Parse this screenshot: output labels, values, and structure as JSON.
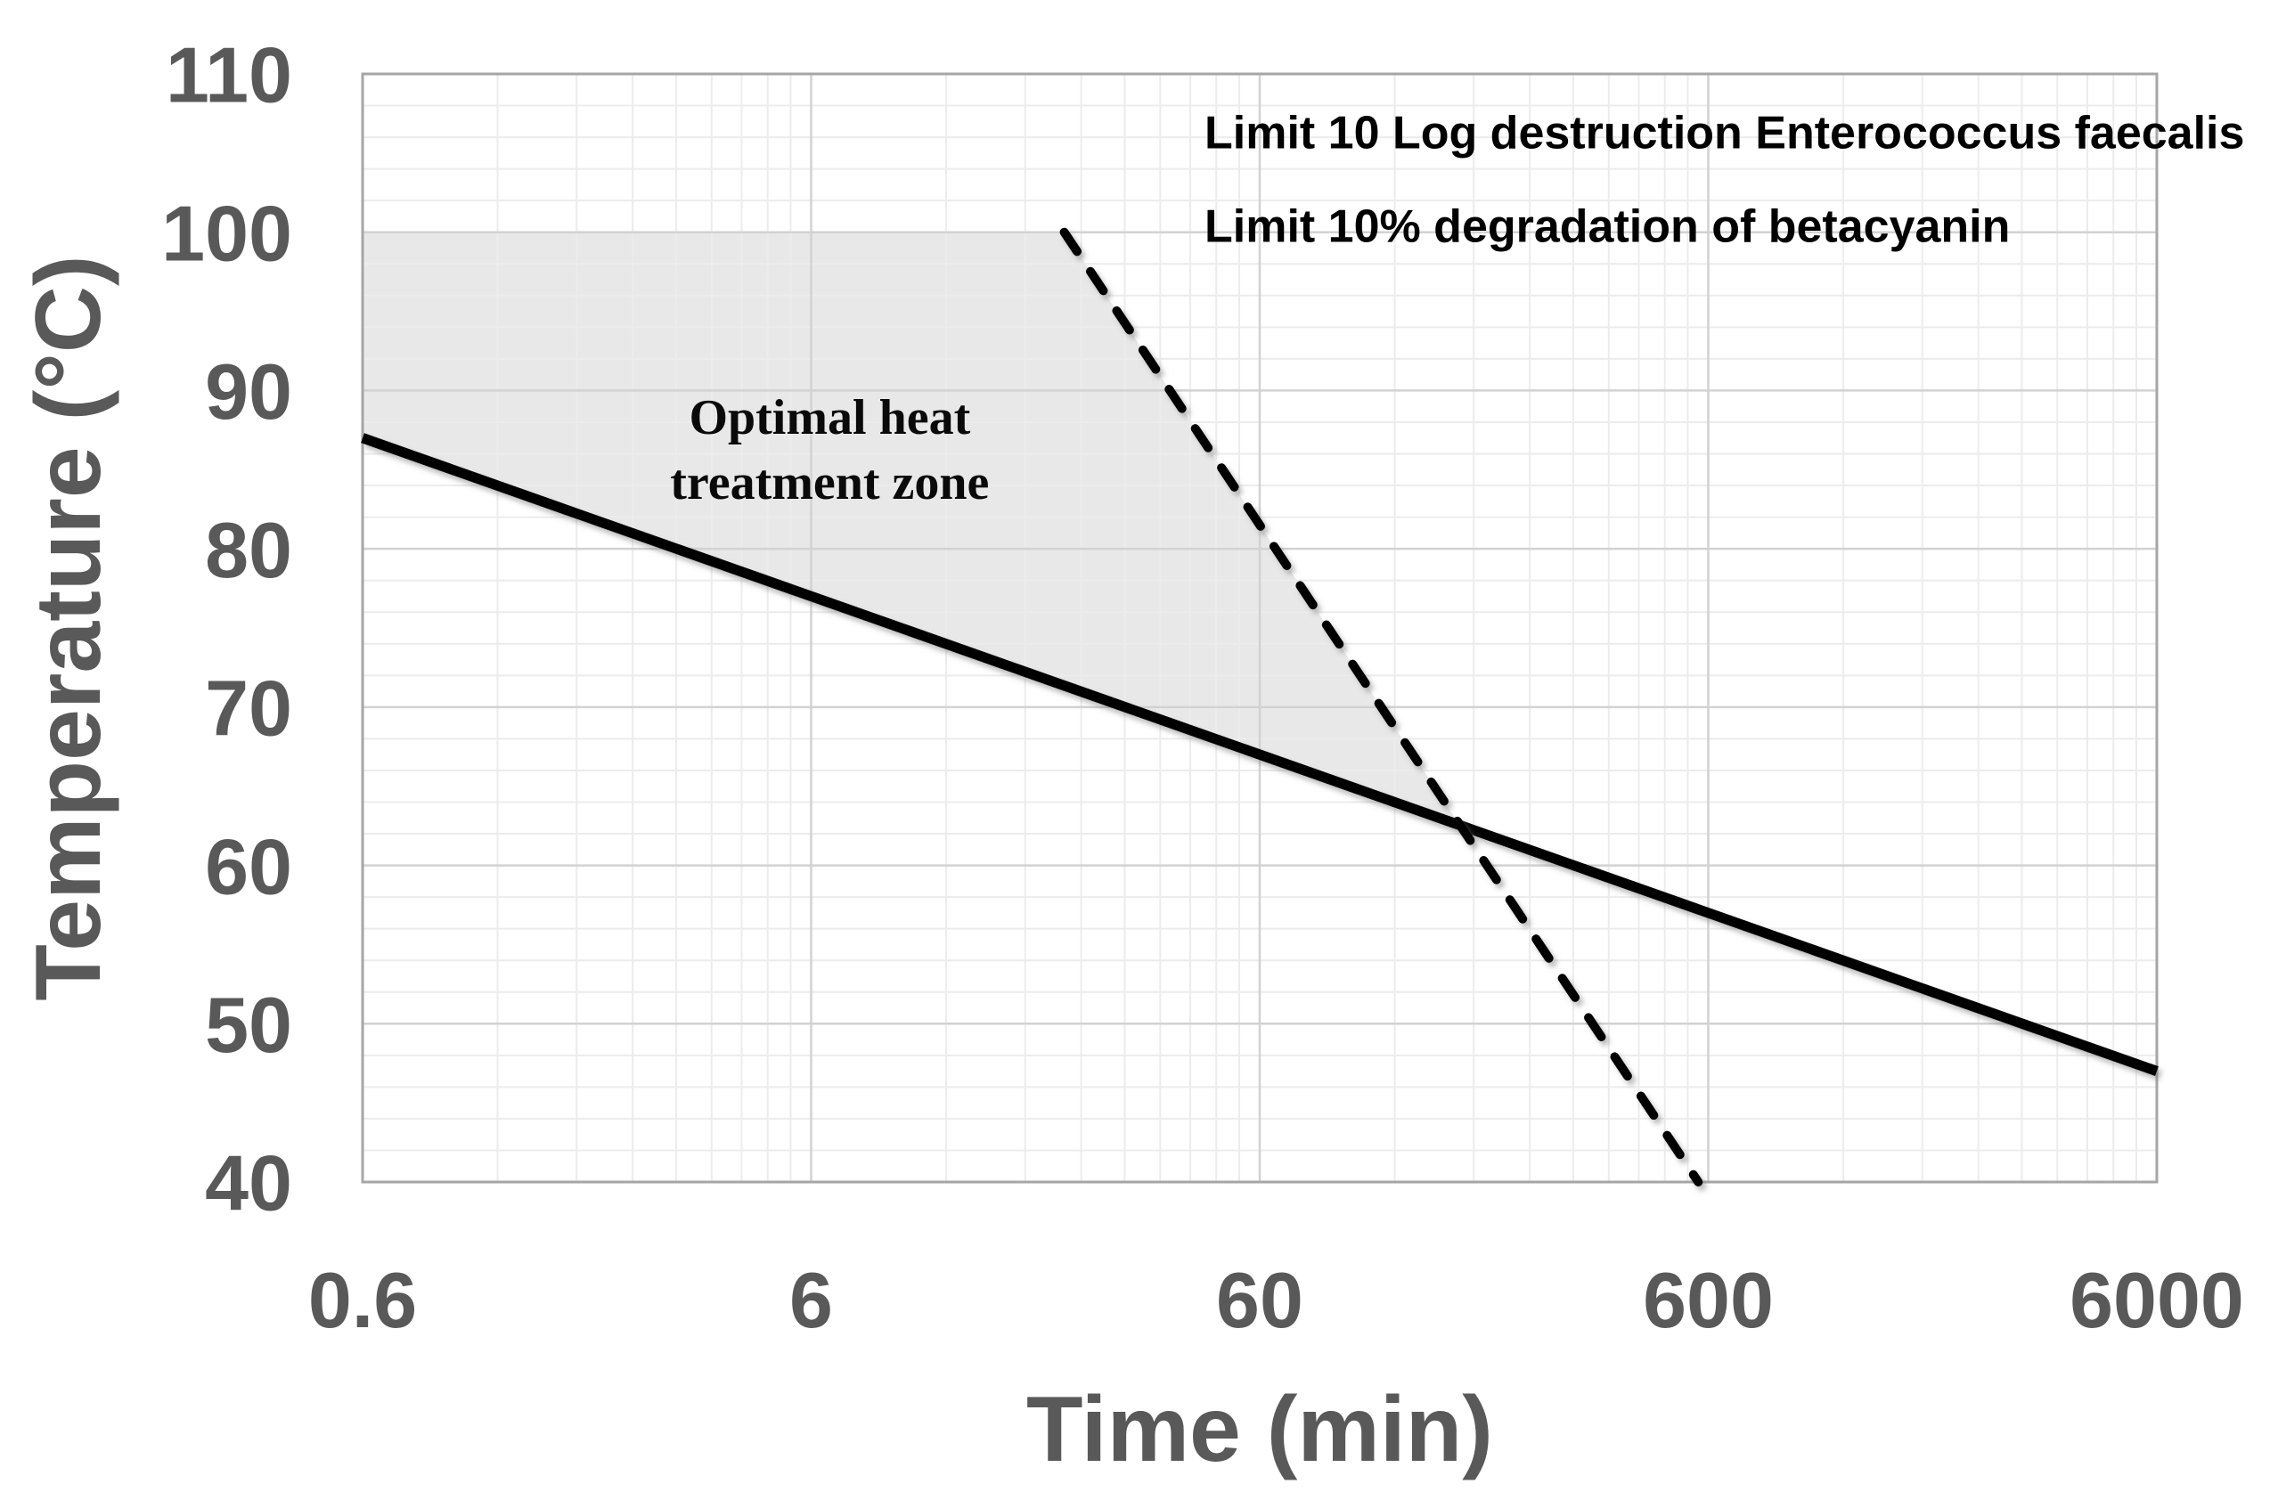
{
  "chart_data": {
    "type": "line",
    "title": "",
    "x_axis": {
      "label": "Time (min)",
      "scale": "log",
      "min": 0.6,
      "max": 6000,
      "tick_values": [
        0.6,
        6,
        60,
        600,
        6000
      ],
      "tick_labels": [
        "0.6",
        "6",
        "60",
        "600",
        "6000"
      ],
      "minor_grid_rule": "multiples 2-9 of each decade start (0.6, 6, 60, 600)",
      "grid": true
    },
    "y_axis": {
      "label": "Temperature (°C)",
      "min": 40,
      "max": 110,
      "major_step": 10,
      "minor_step": 2,
      "tick_values": [
        110,
        100,
        90,
        80,
        70,
        60,
        50,
        40
      ],
      "tick_labels": [
        "110",
        "100",
        "90",
        "80",
        "70",
        "60",
        "50",
        "40"
      ],
      "grid": true
    },
    "series": [
      {
        "name": "Limit 10 Log destruction Enterococcus faecalis",
        "line_style": "solid",
        "color": "#000000",
        "points": [
          [
            0.6,
            87
          ],
          [
            6000,
            47
          ]
        ]
      },
      {
        "name": "Limit 10% degradation of betacyanin",
        "line_style": "dashed",
        "color": "#000000",
        "points": [
          [
            22,
            100
          ],
          [
            570,
            40
          ]
        ]
      }
    ],
    "shaded_zone": {
      "label_lines": [
        "Optimal heat",
        "treatment zone"
      ],
      "fill": "#e8e8e8",
      "vertices": [
        [
          0.6,
          87
        ],
        [
          0.6,
          100
        ],
        [
          22,
          100
        ],
        [
          168,
          62.5
        ]
      ],
      "label_anchor": {
        "t": 6.6,
        "T": 88.4
      }
    },
    "legend": {
      "position": "top-right-inside",
      "entries": [
        "Limit 10 Log destruction Enterococcus faecalis",
        "Limit 10% degradation of betacyanin"
      ]
    },
    "colors": {
      "axis_text": "#595959",
      "legend_text": "#000000",
      "line": "#000000",
      "major_grid": "#d2d2d2",
      "minor_grid": "#ececec",
      "plot_border": "#a6a6a6",
      "zone_fill": "#e8e8e8",
      "background": "#ffffff"
    }
  }
}
